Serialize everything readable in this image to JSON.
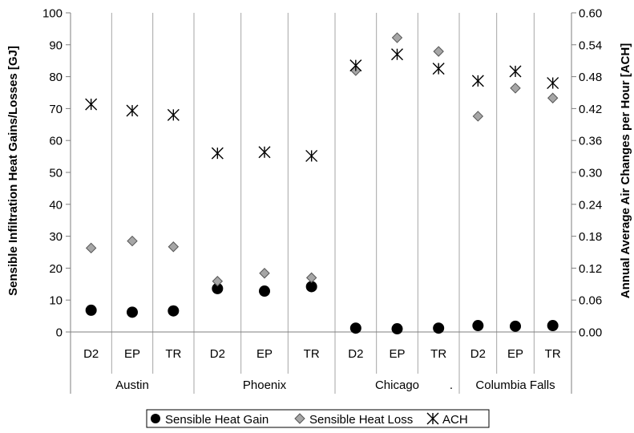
{
  "chart_data": {
    "type": "scatter",
    "title": "",
    "ylabel": "Sensible Infiltration Heat Gains/Losses [GJ]",
    "y2label": "Annual Average Air Changes per Hour [ACH]",
    "ylim": [
      0,
      100
    ],
    "y2lim": [
      0,
      0.6
    ],
    "y_ticks": [
      "0",
      "10",
      "20",
      "30",
      "40",
      "50",
      "60",
      "70",
      "80",
      "90",
      "100"
    ],
    "y2_ticks": [
      "0.00",
      "0.06",
      "0.12",
      "0.18",
      "0.24",
      "0.30",
      "0.36",
      "0.42",
      "0.48",
      "0.54",
      "0.60"
    ],
    "separator_label": ".",
    "grid": true,
    "legend_position": "bottom",
    "groups": [
      {
        "name": "Austin",
        "categories": [
          "D2",
          "EP",
          "TR"
        ]
      },
      {
        "name": "Phoenix",
        "categories": [
          "D2",
          "EP",
          "TR"
        ]
      },
      {
        "name": "Chicago",
        "categories": [
          "D2",
          "EP",
          "TR"
        ]
      },
      {
        "name": "Columbia Falls",
        "categories": [
          "D2",
          "EP",
          "TR"
        ]
      }
    ],
    "series": [
      {
        "name": "Sensible Heat Gain",
        "axis": "left",
        "marker": "circle",
        "color": "#000000",
        "values": [
          [
            6.8,
            6.2,
            6.6
          ],
          [
            13.6,
            12.8,
            14.2
          ],
          [
            1.2,
            1.0,
            1.2
          ],
          [
            2.0,
            1.8,
            2.0
          ]
        ]
      },
      {
        "name": "Sensible Heat Loss",
        "axis": "left",
        "marker": "diamond",
        "color": "#a6a6a6",
        "values": [
          [
            26.3,
            28.5,
            26.7
          ],
          [
            15.9,
            18.4,
            17.0
          ],
          [
            81.9,
            92.2,
            87.9
          ],
          [
            67.6,
            76.4,
            73.3
          ]
        ]
      },
      {
        "name": "ACH",
        "axis": "right",
        "marker": "asterisk",
        "color": "#000000",
        "values": [
          [
            0.428,
            0.416,
            0.408
          ],
          [
            0.336,
            0.338,
            0.331
          ],
          [
            0.501,
            0.522,
            0.495
          ],
          [
            0.472,
            0.49,
            0.468
          ]
        ]
      }
    ]
  }
}
